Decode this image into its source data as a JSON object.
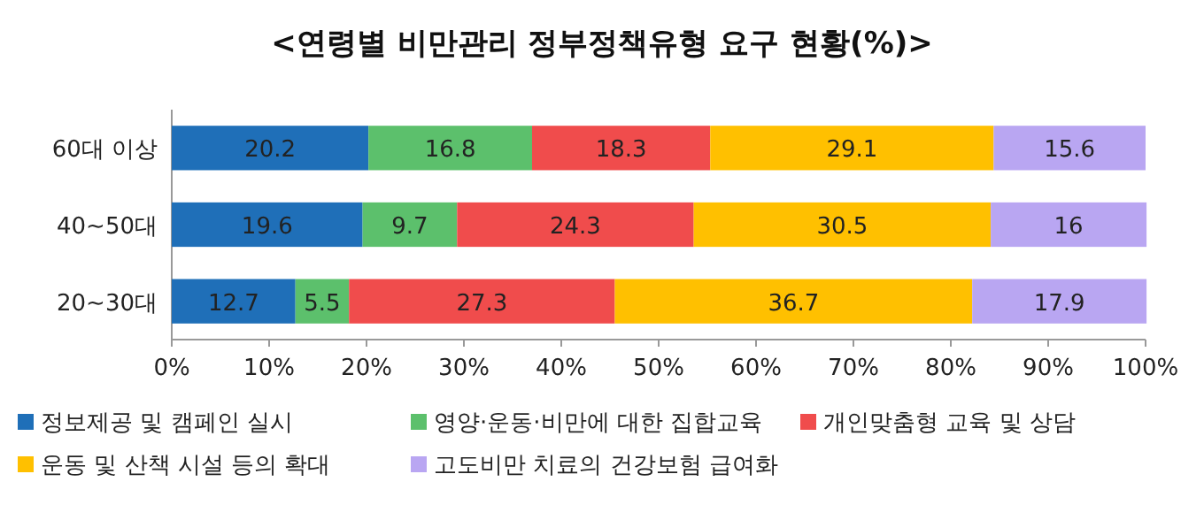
{
  "chart_data": {
    "type": "bar",
    "orientation": "horizontal",
    "stacked": true,
    "title": "<연령별 비만관리 정부정책유형 요구 현황(%)>",
    "categories": [
      "60대 이상",
      "40~50대",
      "20~30대"
    ],
    "series": [
      {
        "name": "정보제공 및 캠페인 실시",
        "color": "#1f6fb8",
        "values": [
          20.2,
          19.6,
          12.7
        ]
      },
      {
        "name": "영양·운동·비만에 대한 집합교육",
        "color": "#5cc06c",
        "values": [
          16.8,
          9.7,
          5.5
        ]
      },
      {
        "name": "개인맞춤형 교육 및 상담",
        "color": "#f04c4c",
        "values": [
          18.3,
          24.3,
          27.3
        ]
      },
      {
        "name": "운동 및 산책 시설 등의 확대",
        "color": "#ffc000",
        "values": [
          29.1,
          30.5,
          36.7
        ]
      },
      {
        "name": "고도비만 치료의 건강보험 급여화",
        "color": "#b9a6f2",
        "values": [
          15.6,
          16,
          17.9
        ]
      }
    ],
    "xlim": [
      0,
      100
    ],
    "xticks": [
      {
        "value": 0,
        "label": "0%"
      },
      {
        "value": 10,
        "label": "10%"
      },
      {
        "value": 20,
        "label": "20%"
      },
      {
        "value": 30,
        "label": "30%"
      },
      {
        "value": 40,
        "label": "40%"
      },
      {
        "value": 50,
        "label": "50%"
      },
      {
        "value": 60,
        "label": "60%"
      },
      {
        "value": 70,
        "label": "70%"
      },
      {
        "value": 80,
        "label": "80%"
      },
      {
        "value": 90,
        "label": "90%"
      },
      {
        "value": 100,
        "label": "100%"
      }
    ],
    "data_labels": true,
    "legend": "bottom"
  }
}
